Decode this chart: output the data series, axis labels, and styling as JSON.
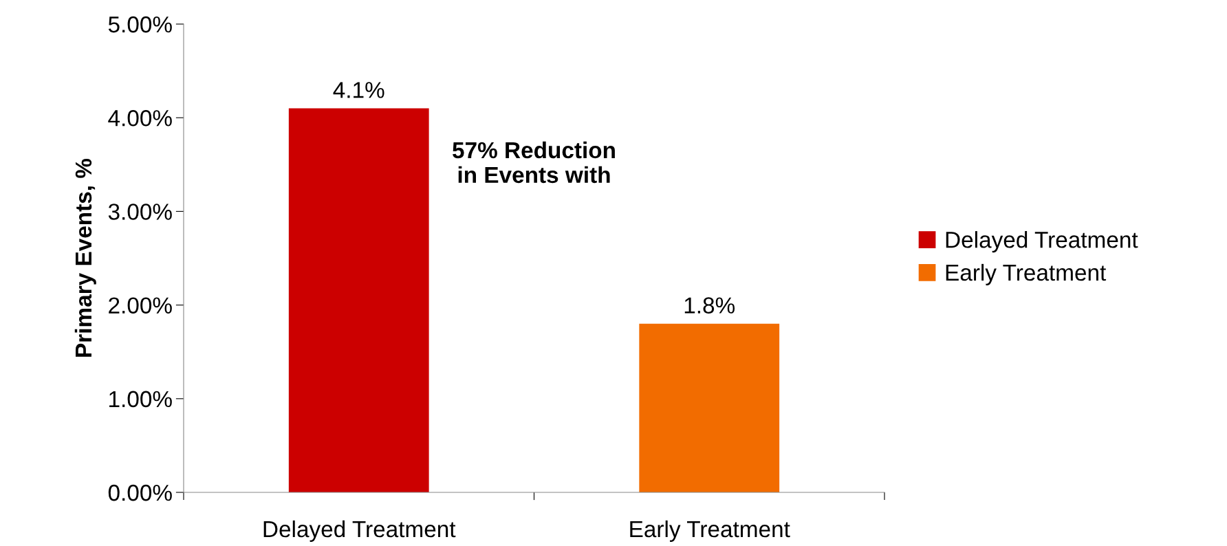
{
  "chart_data": {
    "type": "bar",
    "ylabel": "Primary Events, %",
    "categories": [
      "Delayed Treatment",
      "Early Treatment"
    ],
    "series": [
      {
        "name": "Delayed Treatment",
        "color": "#cc0000",
        "values": [
          4.1,
          null
        ],
        "value_labels": [
          "4.1%",
          null
        ]
      },
      {
        "name": "Early Treatment",
        "color": "#f26c00",
        "values": [
          null,
          1.8
        ],
        "value_labels": [
          null,
          "1.8%"
        ]
      }
    ],
    "ylim": [
      0,
      5
    ],
    "yticks": [
      {
        "value": 0,
        "label": "0.00%"
      },
      {
        "value": 1,
        "label": "1.00%"
      },
      {
        "value": 2,
        "label": "2.00%"
      },
      {
        "value": 3,
        "label": "3.00%"
      },
      {
        "value": 4,
        "label": "4.00%"
      },
      {
        "value": 5,
        "label": "5.00%"
      }
    ],
    "annotations": [
      "57% Reduction\nin Events with"
    ],
    "legend": "right",
    "grid": false
  }
}
